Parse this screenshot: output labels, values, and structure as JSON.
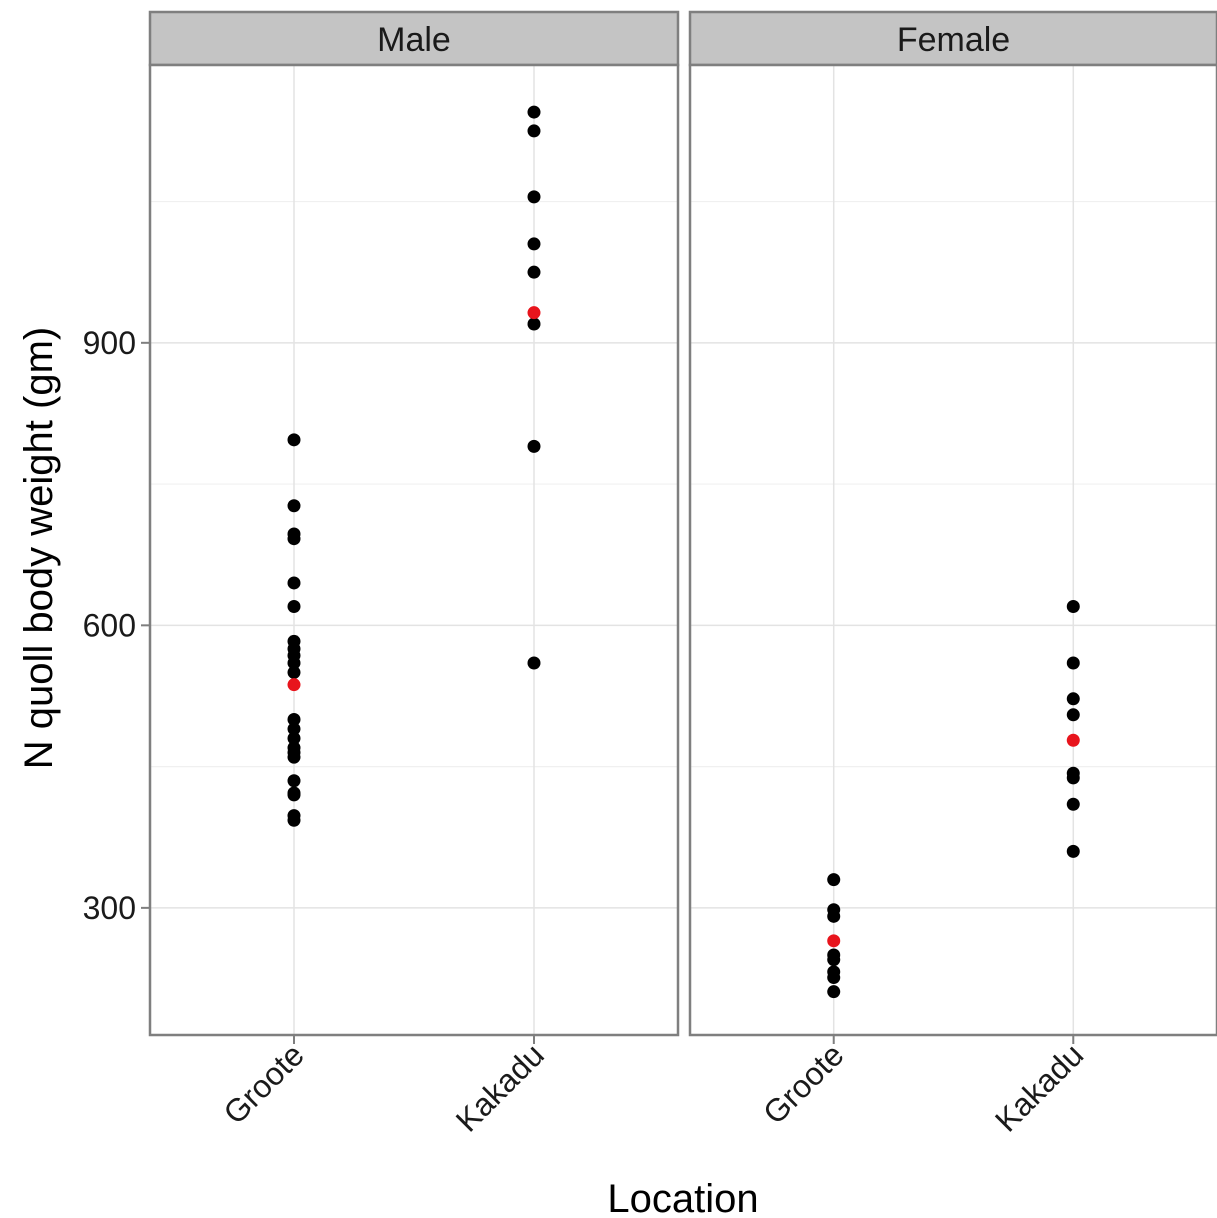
{
  "chart_data": {
    "type": "scatter",
    "title": "",
    "xlabel": "Location",
    "ylabel": "N quoll body weight (gm)",
    "ylim": [
      165,
      1195
    ],
    "yticks": [
      300,
      600,
      900
    ],
    "categories": [
      "Groote",
      "Kakadu"
    ],
    "grid": true,
    "panels": [
      {
        "name": "Male",
        "points": {
          "Groote": [
            797,
            727,
            697,
            692,
            645,
            620,
            583,
            575,
            568,
            560,
            550,
            500,
            490,
            480,
            470,
            465,
            460,
            435,
            422,
            420,
            398,
            393
          ],
          "Kakadu": [
            1145,
            1125,
            1055,
            1005,
            975,
            920,
            790,
            560
          ]
        },
        "means": {
          "Groote": 537,
          "Kakadu": 932
        }
      },
      {
        "name": "Female",
        "points": {
          "Groote": [
            330,
            298,
            291,
            250,
            245,
            232,
            226,
            211
          ],
          "Kakadu": [
            620,
            560,
            522,
            505,
            443,
            438,
            410,
            360
          ]
        },
        "means": {
          "Groote": 265,
          "Kakadu": 478
        }
      }
    ],
    "point_color": "#000000",
    "mean_color": "#e8141c",
    "strip_fill": "#c4c4c4",
    "grid_color": "#e3e3e3",
    "border_color": "#7f7f7f"
  }
}
